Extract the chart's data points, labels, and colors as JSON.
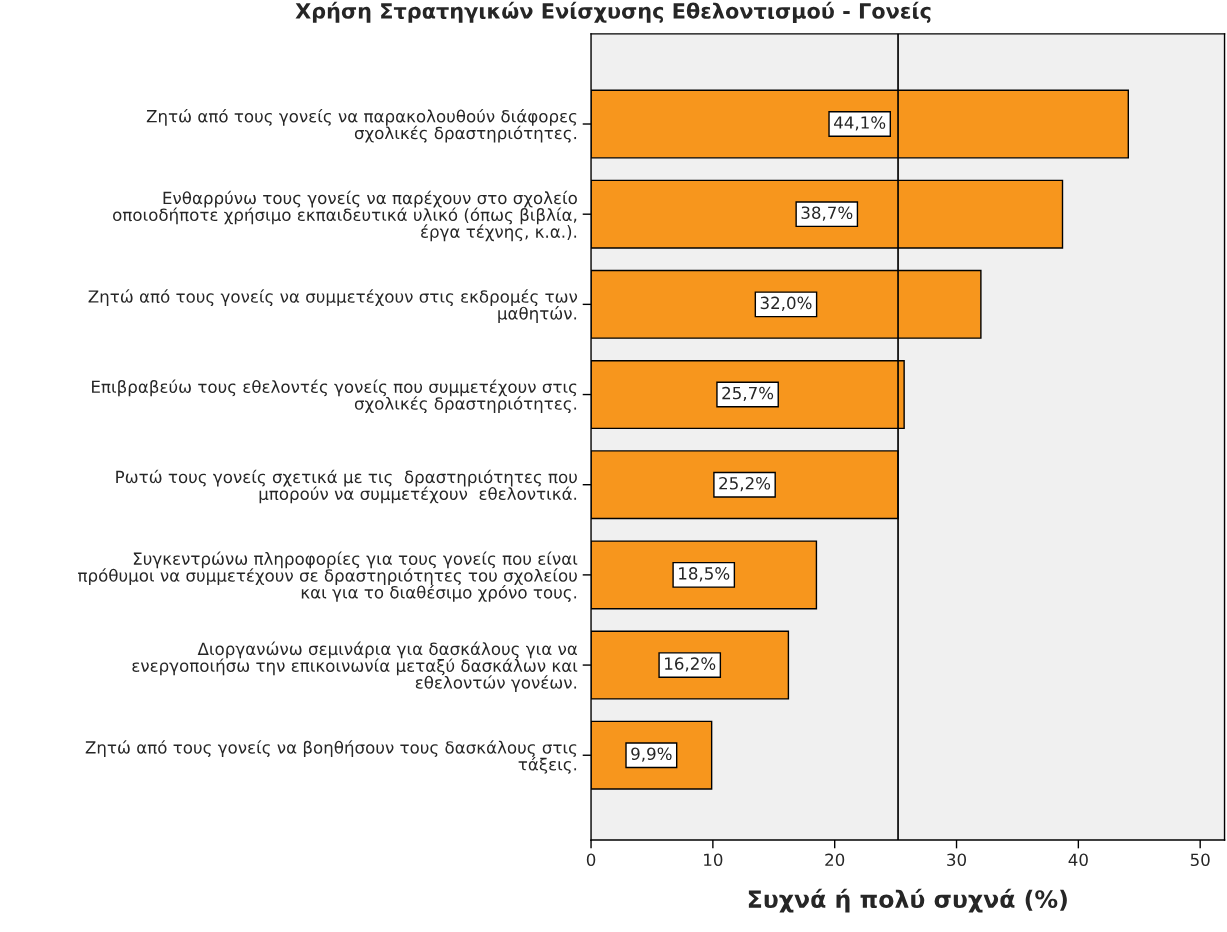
{
  "chart_data": {
    "type": "bar",
    "orientation": "horizontal",
    "title": "Χρήση Στρατηγικών Ενίσχυσης Εθελοντισμού - Γονείς",
    "xlabel": "Συχνά ή πολύ συχνά (%)",
    "categories": [
      "Ζητώ από τους γονείς να παρακολουθούν διάφορες\nσχολικές δραστηριότητες.",
      "Ενθαρρύνω τους γονείς να παρέχουν στο σχολείο\nοποιοδήποτε χρήσιμο εκπαιδευτικά υλικό (όπως βιβλία,\nέργα τέχνης, κ.α.).",
      "Ζητώ από τους γονείς να συμμετέχουν στις εκδρομές των\nμαθητών.",
      "Επιβραβεύω τους εθελοντές γονείς που συμμετέχουν στις\nσχολικές δραστηριότητες.",
      "Ρωτώ τους γονείς σχετικά με τις  δραστηριότητες που\nμπορούν να συμμετέχουν  εθελοντικά.",
      "Συγκεντρώνω πληροφορίες για τους γονείς που είναι\nπρόθυμοι να συμμετέχουν σε δραστηριότητες του σχολείου\nκαι για το διαθέσιμο χρόνο τους.",
      "Διοργανώνω σεμινάρια για δασκάλους για να\nενεργοποιήσω την επικοινωνία μεταξύ δασκάλων και\nεθελοντών γονέων.",
      "Ζητώ από τους γονείς να βοηθήσουν τους δασκάλους στις\nτάξεις."
    ],
    "values": [
      44.1,
      38.7,
      32.0,
      25.7,
      25.2,
      18.5,
      16.2,
      9.9
    ],
    "value_labels": [
      "44,1%",
      "38,7%",
      "32,0%",
      "25,7%",
      "25,2%",
      "18,5%",
      "16,2%",
      "9,9%"
    ],
    "color": "#f7961d",
    "xlim": [
      0,
      52
    ],
    "xticks": [
      0,
      10,
      20,
      30,
      40,
      50
    ],
    "ref_lines": [
      {
        "axis": "x",
        "value": 25.2,
        "color": "#000000"
      }
    ],
    "grid": false,
    "legend": false
  }
}
